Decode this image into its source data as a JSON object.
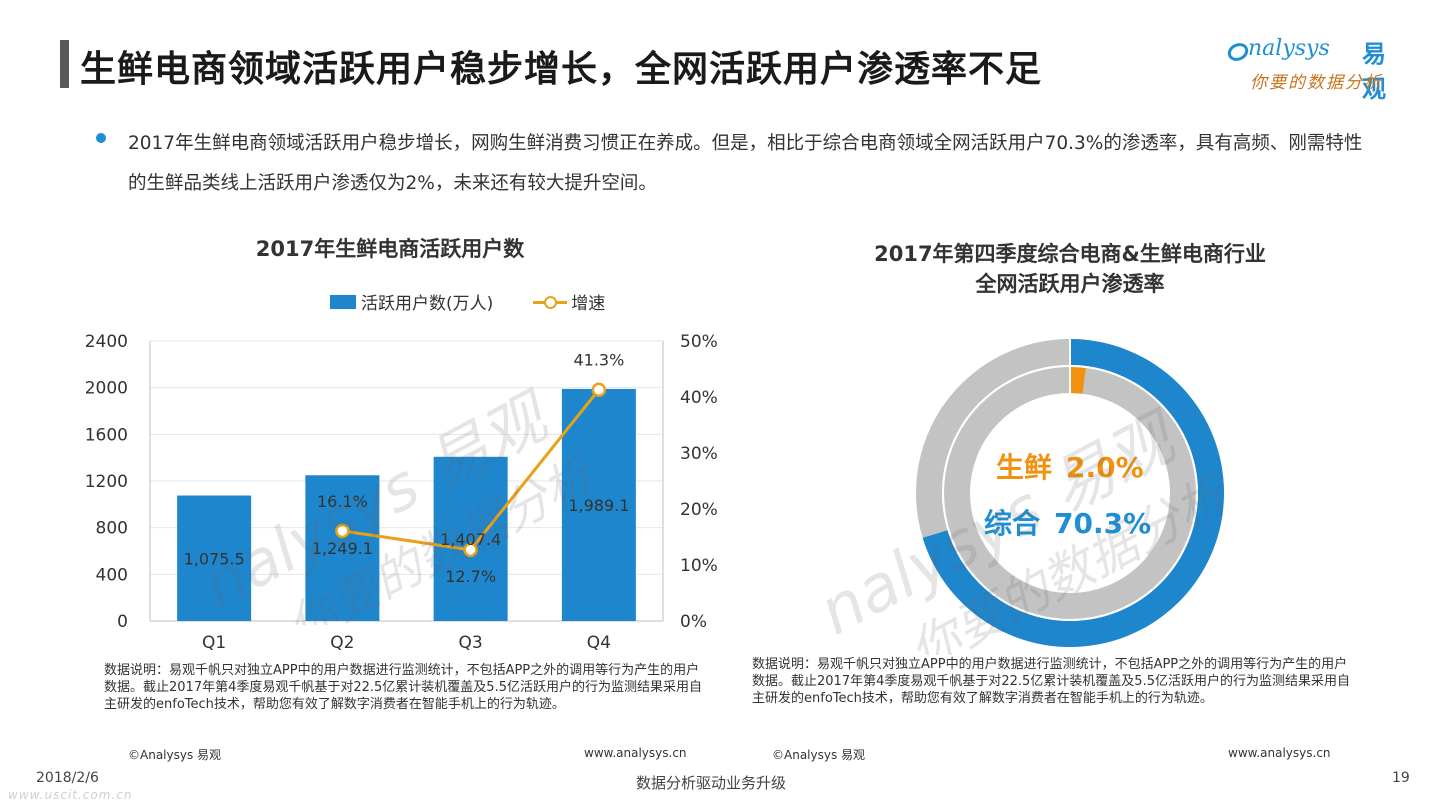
{
  "title": "生鲜电商领域活跃用户稳步增长，全网活跃用户渗透率不足",
  "logo": {
    "brand": "nalysys",
    "brand_cn": "易观",
    "slogan": "你要的数据分析"
  },
  "bullet": "2017年生鲜电商领域活跃用户稳步增长，网购生鲜消费习惯正在养成。但是，相比于综合电商领域全网活跃用户70.3%的渗透率，具有高频、刚需特性的生鲜品类线上活跃用户渗透仅为2%，未来还有较大提升空间。",
  "left": {
    "title": "2017年生鲜电商活跃用户数",
    "legend_bar": "活跃用户数(万人)",
    "legend_line": "增速",
    "note": "数据说明：易观千帆只对独立APP中的用户数据进行监测统计，不包括APP之外的调用等行为产生的用户数据。截止2017年第4季度易观千帆基于对22.5亿累计装机覆盖及5.5亿活跃用户的行为监测结果采用自主研发的enfoTech技术，帮助您有效了解数字消费者在智能手机上的行为轨迹。",
    "copyright": "©Analysys 易观",
    "url": "www.analysys.cn"
  },
  "right": {
    "title_line1": "2017年第四季度综合电商&生鲜电商行业",
    "title_line2": "全网活跃用户渗透率",
    "label_fresh": "生鲜",
    "label_fresh_value": "2.0%",
    "label_general": "综合",
    "label_general_value": "70.3%",
    "note": "数据说明：易观千帆只对独立APP中的用户数据进行监测统计，不包括APP之外的调用等行为产生的用户数据。截止2017年第4季度易观千帆基于对22.5亿累计装机覆盖及5.5亿活跃用户的行为监测结果采用自主研发的enfoTech技术，帮助您有效了解数字消费者在智能手机上的行为轨迹。",
    "copyright": "©Analysys 易观",
    "url": "www.analysys.cn"
  },
  "footer": {
    "date": "2018/2/6",
    "center": "数据分析驱动业务升级",
    "page": "19"
  },
  "corner_url": "www.uscit.com.cn",
  "colors": {
    "bar": "#1e86cd",
    "line": "#e8a21a",
    "gray": "#c3c3c3",
    "accent_blue": "#1e8fd5",
    "accent_orange": "#f0920f"
  },
  "chart_data": [
    {
      "type": "bar",
      "title": "2017年生鲜电商活跃用户数",
      "categories": [
        "Q1",
        "Q2",
        "Q3",
        "Q4"
      ],
      "series": [
        {
          "name": "活跃用户数(万人)",
          "type": "bar",
          "axis": "left",
          "values": [
            1075.5,
            1249.1,
            1407.4,
            1989.1
          ],
          "labels": [
            "1,075.5",
            "1,249.1",
            "1,407.4",
            "1,989.1"
          ]
        },
        {
          "name": "增速",
          "type": "line",
          "axis": "right",
          "values": [
            null,
            16.1,
            12.7,
            41.3
          ],
          "labels": [
            "",
            "16.1%",
            "12.7%",
            "41.3%"
          ]
        }
      ],
      "ylim": [
        0,
        2400
      ],
      "yticks": [
        "0",
        "400",
        "800",
        "1200",
        "1600",
        "2000",
        "2400"
      ],
      "y2lim": [
        0,
        50
      ],
      "y2ticks": [
        "0%",
        "10%",
        "20%",
        "30%",
        "40%",
        "50%"
      ],
      "legend": "top"
    },
    {
      "type": "pie",
      "subtype": "donut",
      "title": "2017年第四季度综合电商&生鲜电商行业全网活跃用户渗透率",
      "rings": [
        {
          "name": "综合",
          "value": 70.3,
          "label": "70.3%"
        },
        {
          "name": "生鲜",
          "value": 2.0,
          "label": "2.0%"
        }
      ]
    }
  ]
}
